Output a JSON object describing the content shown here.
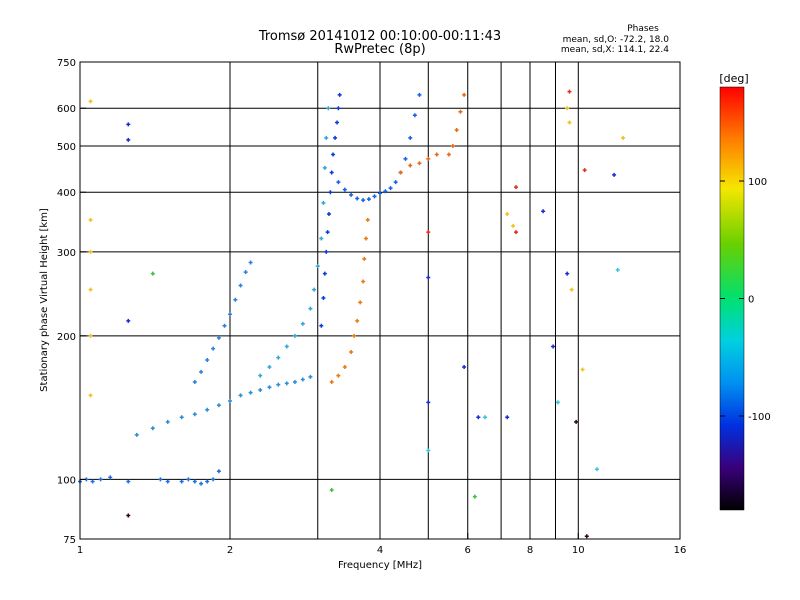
{
  "chart_data": {
    "type": "scatter",
    "title": "Tromsø 20141012 00:10:00-00:11:43",
    "subtitle": "RwPretec (8p)",
    "annotation": {
      "heading": "Phases",
      "line1": "mean, sd,O: -72.2, 18.0",
      "line2": "mean, sd,X: 114.1, 22.4"
    },
    "xlabel": "Frequency [MHz]",
    "ylabel": "Stationary phase Virtual Height [km]",
    "xscale": "log",
    "yscale": "log",
    "xlim": [
      1,
      16
    ],
    "ylim": [
      75,
      750
    ],
    "xticks": [
      1,
      2,
      4,
      6,
      8,
      10,
      16
    ],
    "xtick_labels": [
      "1",
      "2",
      "4",
      "6",
      "8",
      "10",
      "16"
    ],
    "yticks": [
      75,
      100,
      200,
      300,
      400,
      500,
      600,
      750
    ],
    "ytick_labels": [
      "75",
      "100",
      "200",
      "300",
      "400",
      "500",
      "600",
      "750"
    ],
    "x_gridlines": [
      2,
      3,
      4,
      5,
      6,
      7,
      8,
      9,
      10
    ],
    "y_gridlines": [
      100,
      200,
      300,
      400,
      500,
      600
    ],
    "grid": true,
    "colorbar": {
      "label": "[deg]",
      "range": [
        -180,
        180
      ],
      "ticks": [
        100,
        0,
        -100
      ],
      "tick_labels": [
        "100",
        "0",
        "-100"
      ]
    },
    "series": [
      {
        "color": "#1e6fe0",
        "points": [
          [
            1.0,
            99
          ],
          [
            1.03,
            100
          ],
          [
            1.06,
            99
          ],
          [
            1.1,
            100
          ],
          [
            1.15,
            101
          ],
          [
            1.25,
            99
          ],
          [
            1.45,
            100
          ],
          [
            1.5,
            99
          ],
          [
            1.6,
            99
          ],
          [
            1.65,
            100
          ],
          [
            1.7,
            99
          ],
          [
            1.75,
            98
          ],
          [
            1.8,
            99
          ],
          [
            1.85,
            100
          ],
          [
            1.9,
            104
          ]
        ]
      },
      {
        "color": "#2a8ed6",
        "points": [
          [
            1.3,
            124
          ],
          [
            1.4,
            128
          ],
          [
            1.5,
            132
          ],
          [
            1.6,
            135
          ],
          [
            1.7,
            137
          ],
          [
            1.8,
            140
          ],
          [
            1.9,
            143
          ],
          [
            2.0,
            146
          ],
          [
            2.1,
            150
          ],
          [
            2.2,
            152
          ],
          [
            2.3,
            154
          ],
          [
            2.4,
            156
          ],
          [
            2.5,
            158
          ],
          [
            2.6,
            159
          ],
          [
            2.7,
            160
          ],
          [
            2.8,
            162
          ],
          [
            2.9,
            164
          ]
        ]
      },
      {
        "color": "#2c7fdc",
        "points": [
          [
            1.7,
            160
          ],
          [
            1.75,
            168
          ],
          [
            1.8,
            178
          ],
          [
            1.85,
            188
          ],
          [
            1.9,
            198
          ],
          [
            1.95,
            210
          ],
          [
            2.0,
            222
          ],
          [
            2.05,
            238
          ],
          [
            2.1,
            255
          ],
          [
            2.15,
            272
          ],
          [
            2.2,
            285
          ]
        ]
      },
      {
        "color": "#35a5d8",
        "points": [
          [
            2.3,
            165
          ],
          [
            2.4,
            172
          ],
          [
            2.5,
            180
          ],
          [
            2.6,
            190
          ],
          [
            2.7,
            200
          ],
          [
            2.8,
            212
          ],
          [
            2.9,
            228
          ],
          [
            2.95,
            250
          ],
          [
            3.0,
            280
          ],
          [
            3.05,
            320
          ],
          [
            3.08,
            380
          ],
          [
            3.1,
            450
          ],
          [
            3.12,
            520
          ],
          [
            3.15,
            600
          ]
        ]
      },
      {
        "color": "#0a3ad8",
        "points": [
          [
            3.05,
            210
          ],
          [
            3.08,
            240
          ],
          [
            3.1,
            270
          ],
          [
            3.12,
            300
          ],
          [
            3.14,
            330
          ],
          [
            3.16,
            360
          ],
          [
            3.18,
            400
          ],
          [
            3.2,
            440
          ],
          [
            3.22,
            480
          ],
          [
            3.25,
            520
          ],
          [
            3.28,
            560
          ],
          [
            3.3,
            600
          ],
          [
            3.32,
            640
          ]
        ]
      },
      {
        "color": "#1560e8",
        "points": [
          [
            3.3,
            420
          ],
          [
            3.4,
            405
          ],
          [
            3.5,
            395
          ],
          [
            3.6,
            388
          ],
          [
            3.7,
            385
          ],
          [
            3.8,
            387
          ],
          [
            3.9,
            392
          ],
          [
            4.0,
            398
          ],
          [
            4.1,
            402
          ],
          [
            4.2,
            408
          ],
          [
            4.3,
            420
          ],
          [
            4.4,
            440
          ],
          [
            4.5,
            470
          ],
          [
            4.6,
            520
          ],
          [
            4.7,
            580
          ],
          [
            4.8,
            640
          ]
        ]
      },
      {
        "color": "#e87a10",
        "points": [
          [
            3.2,
            160
          ],
          [
            3.3,
            165
          ],
          [
            3.4,
            172
          ],
          [
            3.5,
            185
          ],
          [
            3.55,
            200
          ],
          [
            3.6,
            215
          ],
          [
            3.65,
            235
          ],
          [
            3.7,
            260
          ],
          [
            3.72,
            290
          ],
          [
            3.75,
            320
          ],
          [
            3.78,
            350
          ]
        ]
      },
      {
        "color": "#e86a10",
        "points": [
          [
            4.4,
            440
          ],
          [
            4.6,
            455
          ],
          [
            4.8,
            460
          ],
          [
            5.0,
            470
          ],
          [
            5.2,
            480
          ],
          [
            5.5,
            480
          ],
          [
            5.6,
            500
          ],
          [
            5.7,
            540
          ],
          [
            5.8,
            590
          ],
          [
            5.9,
            640
          ]
        ]
      },
      {
        "color": "#f0c020",
        "points": [
          [
            1.05,
            150
          ],
          [
            1.05,
            200
          ],
          [
            1.05,
            250
          ],
          [
            1.05,
            300
          ],
          [
            1.05,
            350
          ],
          [
            1.05,
            620
          ],
          [
            7.2,
            360
          ],
          [
            7.4,
            340
          ],
          [
            9.5,
            600
          ],
          [
            9.6,
            560
          ],
          [
            9.7,
            250
          ],
          [
            10.2,
            170
          ],
          [
            12.3,
            520
          ]
        ]
      },
      {
        "color": "#1a2ad8",
        "points": [
          [
            1.25,
            555
          ],
          [
            1.25,
            515
          ],
          [
            1.25,
            215
          ],
          [
            5.0,
            265
          ],
          [
            5.0,
            145
          ],
          [
            5.9,
            172
          ],
          [
            6.3,
            135
          ],
          [
            7.2,
            135
          ],
          [
            8.5,
            365
          ],
          [
            8.9,
            190
          ],
          [
            9.5,
            270
          ],
          [
            11.8,
            435
          ]
        ]
      },
      {
        "color": "#e03020",
        "points": [
          [
            7.5,
            410
          ],
          [
            7.5,
            330
          ],
          [
            9.6,
            650
          ],
          [
            10.3,
            445
          ],
          [
            5.0,
            330
          ]
        ]
      },
      {
        "color": "#30c8e0",
        "points": [
          [
            9.1,
            145
          ],
          [
            10.9,
            105
          ],
          [
            12.0,
            275
          ],
          [
            5.0,
            115
          ],
          [
            6.5,
            135
          ]
        ]
      },
      {
        "color": "#40c040",
        "points": [
          [
            1.4,
            270
          ],
          [
            6.2,
            92
          ],
          [
            3.2,
            95
          ]
        ]
      },
      {
        "color": "#300020",
        "points": [
          [
            1.25,
            84
          ],
          [
            9.9,
            132
          ],
          [
            10.4,
            76
          ]
        ]
      }
    ]
  }
}
